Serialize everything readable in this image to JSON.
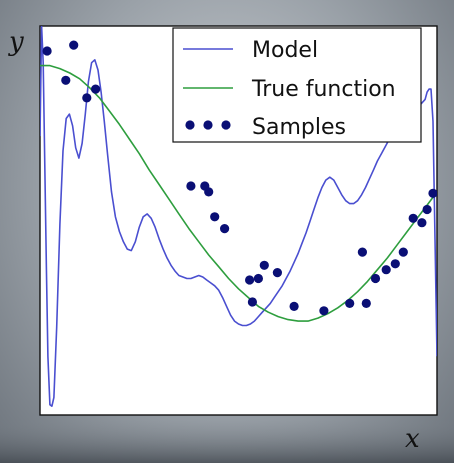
{
  "chart_data": {
    "type": "line",
    "title": "",
    "xlabel": "x",
    "ylabel": "y",
    "xlim": [
      0,
      1
    ],
    "ylim": [
      -1.4,
      1.25
    ],
    "grid": false,
    "legend_position": "top-right",
    "legend": [
      "Model",
      "True function",
      "Samples"
    ],
    "series": [
      {
        "name": "Model",
        "type": "line",
        "color": "#4a4fd0",
        "x": [
          0.0,
          0.004,
          0.008,
          0.012,
          0.016,
          0.02,
          0.025,
          0.03,
          0.035,
          0.042,
          0.05,
          0.058,
          0.066,
          0.074,
          0.082,
          0.09,
          0.098,
          0.106,
          0.114,
          0.122,
          0.13,
          0.138,
          0.146,
          0.154,
          0.162,
          0.17,
          0.18,
          0.19,
          0.2,
          0.21,
          0.22,
          0.23,
          0.24,
          0.25,
          0.26,
          0.27,
          0.28,
          0.29,
          0.3,
          0.31,
          0.32,
          0.33,
          0.34,
          0.35,
          0.36,
          0.37,
          0.38,
          0.39,
          0.4,
          0.41,
          0.42,
          0.43,
          0.44,
          0.45,
          0.46,
          0.47,
          0.48,
          0.49,
          0.5,
          0.51,
          0.52,
          0.53,
          0.54,
          0.55,
          0.56,
          0.57,
          0.58,
          0.59,
          0.6,
          0.61,
          0.62,
          0.63,
          0.64,
          0.65,
          0.66,
          0.67,
          0.68,
          0.69,
          0.7,
          0.71,
          0.72,
          0.73,
          0.74,
          0.75,
          0.76,
          0.77,
          0.78,
          0.79,
          0.8,
          0.81,
          0.82,
          0.83,
          0.84,
          0.85,
          0.86,
          0.87,
          0.88,
          0.89,
          0.9,
          0.91,
          0.92,
          0.93,
          0.94,
          0.95,
          0.96,
          0.97,
          0.975,
          0.98,
          0.985,
          0.99,
          0.995,
          1.0
        ],
        "y": [
          0.5,
          1.25,
          1.0,
          0.3,
          -0.4,
          -1.0,
          -1.33,
          -1.34,
          -1.28,
          -0.8,
          -0.1,
          0.4,
          0.62,
          0.65,
          0.57,
          0.42,
          0.35,
          0.45,
          0.65,
          0.87,
          1.0,
          1.02,
          0.95,
          0.8,
          0.6,
          0.38,
          0.12,
          -0.05,
          -0.15,
          -0.22,
          -0.27,
          -0.28,
          -0.22,
          -0.12,
          -0.05,
          -0.03,
          -0.06,
          -0.12,
          -0.2,
          -0.27,
          -0.33,
          -0.38,
          -0.42,
          -0.45,
          -0.46,
          -0.47,
          -0.47,
          -0.46,
          -0.45,
          -0.46,
          -0.48,
          -0.5,
          -0.52,
          -0.55,
          -0.6,
          -0.66,
          -0.72,
          -0.76,
          -0.78,
          -0.79,
          -0.79,
          -0.78,
          -0.76,
          -0.73,
          -0.7,
          -0.67,
          -0.64,
          -0.6,
          -0.56,
          -0.52,
          -0.47,
          -0.42,
          -0.36,
          -0.3,
          -0.23,
          -0.16,
          -0.08,
          0.0,
          0.08,
          0.15,
          0.2,
          0.22,
          0.2,
          0.15,
          0.1,
          0.06,
          0.04,
          0.04,
          0.06,
          0.1,
          0.15,
          0.21,
          0.27,
          0.33,
          0.38,
          0.43,
          0.48,
          0.53,
          0.57,
          0.61,
          0.64,
          0.67,
          0.68,
          0.7,
          0.72,
          0.75,
          0.8,
          0.82,
          0.82,
          0.6,
          -0.2,
          -1.0
        ]
      },
      {
        "name": "True function",
        "type": "line",
        "color": "#2e9e3e",
        "x": [
          0.0,
          0.025,
          0.05,
          0.075,
          0.1,
          0.125,
          0.15,
          0.175,
          0.2,
          0.225,
          0.25,
          0.275,
          0.3,
          0.325,
          0.35,
          0.375,
          0.4,
          0.425,
          0.45,
          0.475,
          0.5,
          0.525,
          0.55,
          0.575,
          0.6,
          0.625,
          0.65,
          0.675,
          0.7,
          0.725,
          0.75,
          0.775,
          0.8,
          0.825,
          0.85,
          0.875,
          0.9,
          0.925,
          0.95,
          0.975,
          1.0
        ],
        "y": [
          0.98,
          0.98,
          0.96,
          0.93,
          0.89,
          0.83,
          0.76,
          0.67,
          0.58,
          0.48,
          0.38,
          0.27,
          0.17,
          0.07,
          -0.03,
          -0.13,
          -0.22,
          -0.31,
          -0.39,
          -0.47,
          -0.54,
          -0.6,
          -0.66,
          -0.7,
          -0.73,
          -0.75,
          -0.76,
          -0.76,
          -0.74,
          -0.71,
          -0.67,
          -0.62,
          -0.56,
          -0.49,
          -0.41,
          -0.33,
          -0.24,
          -0.15,
          -0.06,
          0.03,
          0.12
        ]
      },
      {
        "name": "Samples",
        "type": "scatter",
        "color": "#0a0f75",
        "x": [
          0.018,
          0.065,
          0.085,
          0.118,
          0.14,
          0.38,
          0.415,
          0.425,
          0.44,
          0.465,
          0.528,
          0.535,
          0.55,
          0.565,
          0.598,
          0.64,
          0.715,
          0.78,
          0.812,
          0.822,
          0.845,
          0.872,
          0.895,
          0.915,
          0.94,
          0.962,
          0.975,
          0.99
        ],
        "y": [
          1.08,
          0.88,
          1.12,
          0.76,
          0.82,
          0.16,
          0.16,
          0.12,
          -0.05,
          -0.13,
          -0.48,
          -0.63,
          -0.47,
          -0.38,
          -0.43,
          -0.66,
          -0.69,
          -0.64,
          -0.29,
          -0.64,
          -0.47,
          -0.41,
          -0.37,
          -0.29,
          -0.06,
          -0.09,
          0.0,
          0.11
        ]
      }
    ]
  }
}
